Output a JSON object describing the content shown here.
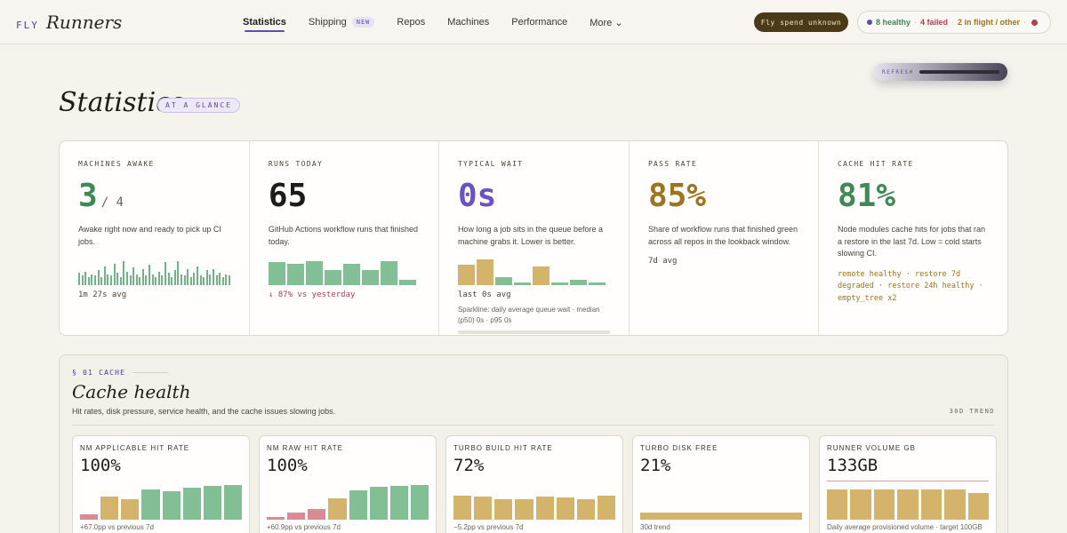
{
  "brand": {
    "prefix": "FLY",
    "name": "Runners"
  },
  "nav": {
    "items": [
      {
        "label": "Statistics",
        "active": true,
        "badge": ""
      },
      {
        "label": "Shipping",
        "active": false,
        "badge": "NEW"
      },
      {
        "label": "Repos",
        "active": false,
        "badge": ""
      },
      {
        "label": "Machines",
        "active": false,
        "badge": ""
      },
      {
        "label": "Performance",
        "active": false,
        "badge": ""
      },
      {
        "label": "More ⌄",
        "active": false,
        "badge": ""
      }
    ]
  },
  "spend": {
    "label": "Fly spend unknown"
  },
  "status": {
    "healthy": "8 healthy",
    "failed": "4 failed",
    "inflight": "2 in flight / other",
    "sep": "·"
  },
  "refresh": {
    "label": "REFRESH"
  },
  "page": {
    "title": "Statistics",
    "badge": "AT A GLANCE"
  },
  "stats": [
    {
      "label": "MACHINES AWAKE",
      "value": "3",
      "denom": "/ 4",
      "color": "#3e8a57",
      "desc": "Awake right now and ready to pick up CI jobs.",
      "foot": "1m 27s avg",
      "bars": [
        0.45,
        0.35,
        0.5,
        0.3,
        0.4,
        0.35,
        0.55,
        0.3,
        0.7,
        0.4,
        0.35,
        0.8,
        0.45,
        0.3,
        0.9,
        0.5,
        0.35,
        0.65,
        0.4,
        0.3,
        0.6,
        0.35,
        0.75,
        0.4,
        0.3,
        0.5,
        0.35,
        0.85,
        0.45,
        0.3,
        0.55,
        0.9,
        0.4,
        0.35,
        0.6,
        0.3,
        0.45,
        0.7,
        0.35,
        0.3,
        0.55,
        0.4,
        0.6,
        0.35,
        0.45,
        0.3,
        0.4,
        0.35
      ]
    },
    {
      "label": "RUNS TODAY",
      "value": "65",
      "denom": "",
      "color": "#1f1c17",
      "desc": "GitHub Actions workflow runs that finished today.",
      "foot": "↓ 87% vs yesterday",
      "bars": [
        0.85,
        0.8,
        0.9,
        0.55,
        0.8,
        0.55,
        0.9,
        0.2
      ]
    },
    {
      "label": "TYPICAL WAIT",
      "value": "0s",
      "denom": "",
      "color": "#6a52c0",
      "desc": "How long a job sits in the queue before a machine grabs it. Lower is better.",
      "foot": "last 0s avg",
      "note": "Sparkline: daily average queue wait · median (p50) 0s · p95 0s",
      "bars": [
        0.75,
        0.95,
        0.3,
        0.1,
        0.7,
        0.1,
        0.2,
        0.1
      ]
    },
    {
      "label": "PASS RATE",
      "value": "85%",
      "denom": "",
      "color": "#a0741c",
      "desc": "Share of workflow runs that finished green across all repos in the lookback window.",
      "foot": "7d avg"
    },
    {
      "label": "CACHE HIT RATE",
      "value": "81%",
      "denom": "",
      "color": "#3e8a57",
      "desc": "Node modules cache hits for jobs that ran a restore in the last 7d. Low = cold starts slowing CI.",
      "cache_line1": "remote healthy · restore 7d",
      "cache_line2": "degraded · restore 24h healthy ·",
      "cache_line3": "empty_tree x2"
    }
  ],
  "section": {
    "kicker": "§ 01 CACHE",
    "title": "Cache health",
    "subtitle": "Hit rates, disk pressure, service health, and the cache issues slowing jobs.",
    "trend": "30D TREND",
    "cards": [
      {
        "label": "NM APPLICABLE HIT RATE",
        "value": "100%",
        "foot": "+67.0pp vs previous 7d",
        "bars": [
          {
            "v": 0.15,
            "c": "#d98a94"
          },
          {
            "v": 0.62,
            "c": "#d4b36a"
          },
          {
            "v": 0.55,
            "c": "#d4b36a"
          },
          {
            "v": 0.8,
            "c": "#82bf94"
          },
          {
            "v": 0.75,
            "c": "#82bf94"
          },
          {
            "v": 0.85,
            "c": "#82bf94"
          },
          {
            "v": 0.9,
            "c": "#82bf94"
          },
          {
            "v": 0.92,
            "c": "#82bf94"
          }
        ]
      },
      {
        "label": "NM RAW HIT RATE",
        "value": "100%",
        "foot": "+60.9pp vs previous 7d",
        "bars": [
          {
            "v": 0.08,
            "c": "#d98a94"
          },
          {
            "v": 0.2,
            "c": "#d98a94"
          },
          {
            "v": 0.28,
            "c": "#d98a94"
          },
          {
            "v": 0.58,
            "c": "#d4b36a"
          },
          {
            "v": 0.78,
            "c": "#82bf94"
          },
          {
            "v": 0.88,
            "c": "#82bf94"
          },
          {
            "v": 0.9,
            "c": "#82bf94"
          },
          {
            "v": 0.92,
            "c": "#82bf94"
          }
        ]
      },
      {
        "label": "TURBO BUILD HIT RATE",
        "value": "72%",
        "foot": "−5.2pp vs previous 7d",
        "bars": [
          {
            "v": 0.65,
            "c": "#d4b36a"
          },
          {
            "v": 0.62,
            "c": "#d4b36a"
          },
          {
            "v": 0.55,
            "c": "#d4b36a"
          },
          {
            "v": 0.55,
            "c": "#d4b36a"
          },
          {
            "v": 0.62,
            "c": "#d4b36a"
          },
          {
            "v": 0.6,
            "c": "#d4b36a"
          },
          {
            "v": 0.55,
            "c": "#d4b36a"
          },
          {
            "v": 0.65,
            "c": "#d4b36a"
          }
        ]
      },
      {
        "label": "TURBO DISK FREE",
        "value": "21%",
        "foot": "30d trend",
        "bars": [
          {
            "v": 0.18,
            "c": "#d4b36a"
          }
        ]
      },
      {
        "label": "RUNNER VOLUME GB",
        "value": "133GB",
        "foot": "Daily average provisioned volume · target 100GB",
        "bars": [
          {
            "v": 0.82,
            "c": "#d4b36a"
          },
          {
            "v": 0.8,
            "c": "#d4b36a"
          },
          {
            "v": 0.82,
            "c": "#d4b36a"
          },
          {
            "v": 0.8,
            "c": "#d4b36a"
          },
          {
            "v": 0.82,
            "c": "#d4b36a"
          },
          {
            "v": 0.8,
            "c": "#d4b36a"
          },
          {
            "v": 0.72,
            "c": "#d4b36a"
          }
        ]
      }
    ]
  }
}
